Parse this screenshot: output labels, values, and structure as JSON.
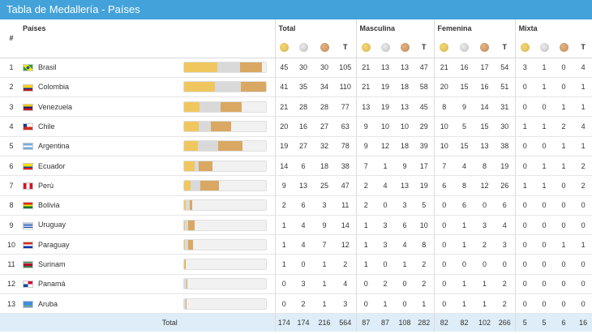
{
  "title": "Tabla de Medallería - Países",
  "headers": {
    "rank": "#",
    "country": "Países",
    "groups": [
      "Total",
      "Masculina",
      "Femenina",
      "Mixta"
    ],
    "total_col": "T"
  },
  "icons": {
    "gold": "gold-medal-icon",
    "silver": "silver-medal-icon",
    "bronze": "bronze-medal-icon"
  },
  "colors": {
    "header": "#43a2d9",
    "gold": "#f0c75e",
    "silver": "#d9d9d9",
    "bronze": "#d9a862",
    "footer": "#deedf7"
  },
  "rows": [
    {
      "rank": "1",
      "country": "Brasil",
      "flag": "BR",
      "total": [
        "45",
        "30",
        "30",
        "105"
      ],
      "masc": [
        "21",
        "13",
        "13",
        "47"
      ],
      "fem": [
        "21",
        "16",
        "17",
        "54"
      ],
      "mixta": [
        "3",
        "1",
        "0",
        "4"
      ]
    },
    {
      "rank": "2",
      "country": "Colombia",
      "flag": "CO",
      "total": [
        "41",
        "35",
        "34",
        "110"
      ],
      "masc": [
        "21",
        "19",
        "18",
        "58"
      ],
      "fem": [
        "20",
        "15",
        "16",
        "51"
      ],
      "mixta": [
        "0",
        "1",
        "0",
        "1"
      ]
    },
    {
      "rank": "3",
      "country": "Venezuela",
      "flag": "VE",
      "total": [
        "21",
        "28",
        "28",
        "77"
      ],
      "masc": [
        "13",
        "19",
        "13",
        "45"
      ],
      "fem": [
        "8",
        "9",
        "14",
        "31"
      ],
      "mixta": [
        "0",
        "0",
        "1",
        "1"
      ]
    },
    {
      "rank": "4",
      "country": "Chile",
      "flag": "CL",
      "total": [
        "20",
        "16",
        "27",
        "63"
      ],
      "masc": [
        "9",
        "10",
        "10",
        "29"
      ],
      "fem": [
        "10",
        "5",
        "15",
        "30"
      ],
      "mixta": [
        "1",
        "1",
        "2",
        "4"
      ]
    },
    {
      "rank": "5",
      "country": "Argentina",
      "flag": "AR",
      "total": [
        "19",
        "27",
        "32",
        "78"
      ],
      "masc": [
        "9",
        "12",
        "18",
        "39"
      ],
      "fem": [
        "10",
        "15",
        "13",
        "38"
      ],
      "mixta": [
        "0",
        "0",
        "1",
        "1"
      ]
    },
    {
      "rank": "6",
      "country": "Ecuador",
      "flag": "EC",
      "total": [
        "14",
        "6",
        "18",
        "38"
      ],
      "masc": [
        "7",
        "1",
        "9",
        "17"
      ],
      "fem": [
        "7",
        "4",
        "8",
        "19"
      ],
      "mixta": [
        "0",
        "1",
        "1",
        "2"
      ]
    },
    {
      "rank": "7",
      "country": "Perú",
      "flag": "PE",
      "total": [
        "9",
        "13",
        "25",
        "47"
      ],
      "masc": [
        "2",
        "4",
        "13",
        "19"
      ],
      "fem": [
        "6",
        "8",
        "12",
        "26"
      ],
      "mixta": [
        "1",
        "1",
        "0",
        "2"
      ]
    },
    {
      "rank": "8",
      "country": "Bolivia",
      "flag": "BO",
      "total": [
        "2",
        "6",
        "3",
        "11"
      ],
      "masc": [
        "2",
        "0",
        "3",
        "5"
      ],
      "fem": [
        "0",
        "6",
        "0",
        "6"
      ],
      "mixta": [
        "0",
        "0",
        "0",
        "0"
      ]
    },
    {
      "rank": "9",
      "country": "Uruguay",
      "flag": "UY",
      "total": [
        "1",
        "4",
        "9",
        "14"
      ],
      "masc": [
        "1",
        "3",
        "6",
        "10"
      ],
      "fem": [
        "0",
        "1",
        "3",
        "4"
      ],
      "mixta": [
        "0",
        "0",
        "0",
        "0"
      ]
    },
    {
      "rank": "10",
      "country": "Paraguay",
      "flag": "PY",
      "total": [
        "1",
        "4",
        "7",
        "12"
      ],
      "masc": [
        "1",
        "3",
        "4",
        "8"
      ],
      "fem": [
        "0",
        "1",
        "2",
        "3"
      ],
      "mixta": [
        "0",
        "0",
        "1",
        "1"
      ]
    },
    {
      "rank": "11",
      "country": "Surinam",
      "flag": "SR",
      "total": [
        "1",
        "0",
        "1",
        "2"
      ],
      "masc": [
        "1",
        "0",
        "1",
        "2"
      ],
      "fem": [
        "0",
        "0",
        "0",
        "0"
      ],
      "mixta": [
        "0",
        "0",
        "0",
        "0"
      ]
    },
    {
      "rank": "12",
      "country": "Panamá",
      "flag": "PA",
      "total": [
        "0",
        "3",
        "1",
        "4"
      ],
      "masc": [
        "0",
        "2",
        "0",
        "2"
      ],
      "fem": [
        "0",
        "1",
        "1",
        "2"
      ],
      "mixta": [
        "0",
        "0",
        "0",
        "0"
      ]
    },
    {
      "rank": "13",
      "country": "Aruba",
      "flag": "AW",
      "total": [
        "0",
        "2",
        "1",
        "3"
      ],
      "masc": [
        "0",
        "1",
        "0",
        "1"
      ],
      "fem": [
        "0",
        "1",
        "1",
        "2"
      ],
      "mixta": [
        "0",
        "0",
        "0",
        "0"
      ]
    }
  ],
  "footer": {
    "label": "Total",
    "total": [
      "174",
      "174",
      "216",
      "564"
    ],
    "masc": [
      "87",
      "87",
      "108",
      "282"
    ],
    "fem": [
      "82",
      "82",
      "102",
      "266"
    ],
    "mixta": [
      "5",
      "5",
      "6",
      "16"
    ]
  }
}
